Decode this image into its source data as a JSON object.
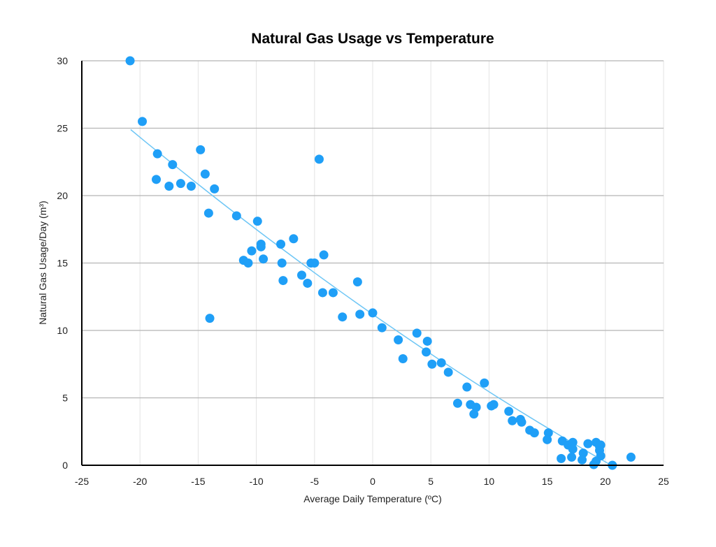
{
  "chart_data": {
    "type": "scatter",
    "title": "Natural Gas Usage vs Temperature",
    "xlabel": "Average Daily Temperature (ºC)",
    "ylabel": "Natural Gas Usage/Day (m³)",
    "xlim": [
      -25,
      25
    ],
    "ylim": [
      0,
      30
    ],
    "xticks": [
      "-25",
      "-20",
      "-15",
      "-10",
      "-5",
      "0",
      "5",
      "10",
      "15",
      "20",
      "25"
    ],
    "yticks": [
      "0",
      "5",
      "10",
      "15",
      "20",
      "25",
      "30"
    ],
    "grid": true,
    "legend": "none",
    "colors": {
      "points": "#1f9ff7",
      "trendline": "#6ec6f5",
      "grid_h": "#b5b5b5",
      "grid_v": "#e3e3e3"
    },
    "trendline": {
      "type": "polynomial",
      "x_range": [
        -20.8,
        20.5
      ],
      "coefficients": [
        11.2,
        -0.602,
        0.00272
      ]
    },
    "points": [
      [
        -20.85,
        30.0
      ],
      [
        -19.8,
        25.5
      ],
      [
        -18.5,
        23.1
      ],
      [
        -18.6,
        21.2
      ],
      [
        -17.2,
        22.3
      ],
      [
        -17.5,
        20.7
      ],
      [
        -16.5,
        20.9
      ],
      [
        -15.6,
        20.7
      ],
      [
        -14.8,
        23.4
      ],
      [
        -14.4,
        21.6
      ],
      [
        -13.6,
        20.5
      ],
      [
        -14.1,
        18.7
      ],
      [
        -14.0,
        10.9
      ],
      [
        -11.7,
        18.5
      ],
      [
        -9.9,
        18.1
      ],
      [
        -11.1,
        15.2
      ],
      [
        -10.7,
        15.0
      ],
      [
        -10.4,
        15.9
      ],
      [
        -9.6,
        16.4
      ],
      [
        -9.6,
        16.2
      ],
      [
        -9.4,
        15.3
      ],
      [
        -7.9,
        16.4
      ],
      [
        -6.8,
        16.8
      ],
      [
        -7.8,
        15.0
      ],
      [
        -7.7,
        13.7
      ],
      [
        -6.1,
        14.1
      ],
      [
        -5.6,
        13.5
      ],
      [
        -5.3,
        15.0
      ],
      [
        -5.0,
        15.0
      ],
      [
        -4.6,
        22.7
      ],
      [
        -4.2,
        15.6
      ],
      [
        -4.3,
        12.8
      ],
      [
        -3.4,
        12.8
      ],
      [
        -2.6,
        11.0
      ],
      [
        -1.3,
        13.6
      ],
      [
        -1.1,
        11.2
      ],
      [
        0.0,
        11.3
      ],
      [
        0.8,
        10.2
      ],
      [
        2.2,
        9.3
      ],
      [
        2.6,
        7.9
      ],
      [
        3.8,
        9.8
      ],
      [
        4.7,
        9.2
      ],
      [
        4.6,
        8.4
      ],
      [
        5.1,
        7.5
      ],
      [
        5.9,
        7.6
      ],
      [
        6.5,
        6.9
      ],
      [
        8.1,
        5.8
      ],
      [
        9.6,
        6.1
      ],
      [
        7.3,
        4.6
      ],
      [
        8.4,
        4.5
      ],
      [
        8.9,
        4.3
      ],
      [
        8.7,
        3.8
      ],
      [
        10.2,
        4.4
      ],
      [
        10.4,
        4.5
      ],
      [
        11.7,
        4.0
      ],
      [
        12.0,
        3.3
      ],
      [
        12.7,
        3.4
      ],
      [
        12.8,
        3.2
      ],
      [
        13.5,
        2.6
      ],
      [
        13.9,
        2.4
      ],
      [
        15.1,
        2.4
      ],
      [
        15.0,
        1.9
      ],
      [
        16.3,
        1.8
      ],
      [
        16.2,
        0.5
      ],
      [
        16.8,
        1.5
      ],
      [
        17.2,
        1.7
      ],
      [
        17.2,
        1.2
      ],
      [
        17.1,
        0.6
      ],
      [
        18.5,
        1.6
      ],
      [
        18.1,
        0.9
      ],
      [
        18.0,
        0.4
      ],
      [
        19.0,
        0.05
      ],
      [
        19.2,
        1.7
      ],
      [
        19.5,
        1.4
      ],
      [
        19.6,
        1.5
      ],
      [
        19.5,
        1.1
      ],
      [
        19.6,
        0.7
      ],
      [
        19.2,
        0.3
      ],
      [
        20.6,
        0.0
      ],
      [
        22.2,
        0.6
      ]
    ]
  }
}
